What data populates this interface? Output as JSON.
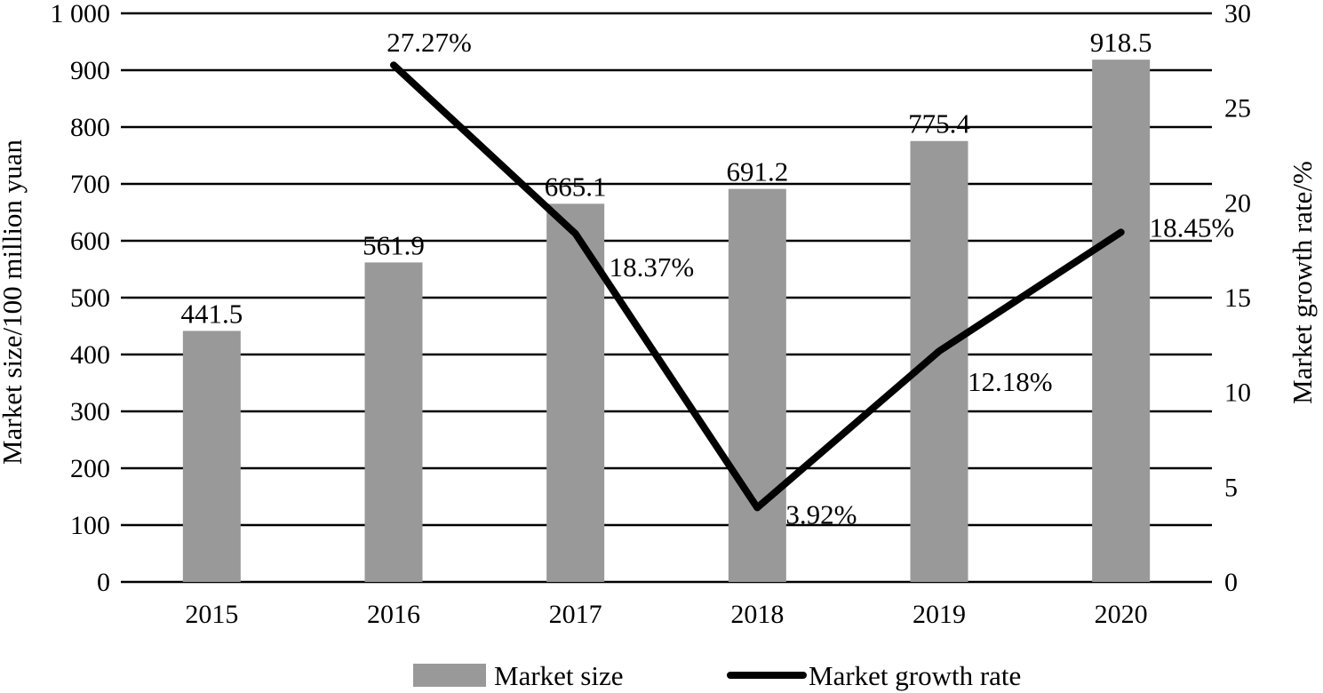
{
  "chart_data": {
    "type": "bar",
    "categories": [
      "2015",
      "2016",
      "2017",
      "2018",
      "2019",
      "2020"
    ],
    "series": [
      {
        "name": "Market size",
        "type": "bar",
        "axis": "left",
        "values": [
          441.5,
          561.9,
          665.1,
          691.2,
          775.4,
          918.5
        ],
        "labels": [
          "441.5",
          "561.9",
          "665.1",
          "691.2",
          "775.4",
          "918.5"
        ]
      },
      {
        "name": "Market growth rate",
        "type": "line",
        "axis": "right",
        "values": [
          null,
          27.27,
          18.37,
          3.92,
          12.18,
          18.45
        ],
        "labels": [
          null,
          "27.27%",
          "18.37%",
          "3.92%",
          "12.18%",
          "18.45%"
        ]
      }
    ],
    "ylabel": "Market size/100 million yuan",
    "y2label": "Market growth rate/%",
    "ylim": [
      0,
      1000
    ],
    "y2lim": [
      0,
      30
    ],
    "yticks": [
      "0",
      "100",
      "200",
      "300",
      "400",
      "500",
      "600",
      "700",
      "800",
      "900",
      "1 000"
    ],
    "y2ticks": [
      "0",
      "5",
      "10",
      "15",
      "20",
      "25",
      "30"
    ],
    "grid": true,
    "legend_position": "bottom",
    "colors": {
      "bar": "#999999",
      "line": "#000000",
      "grid": "#000000"
    }
  }
}
